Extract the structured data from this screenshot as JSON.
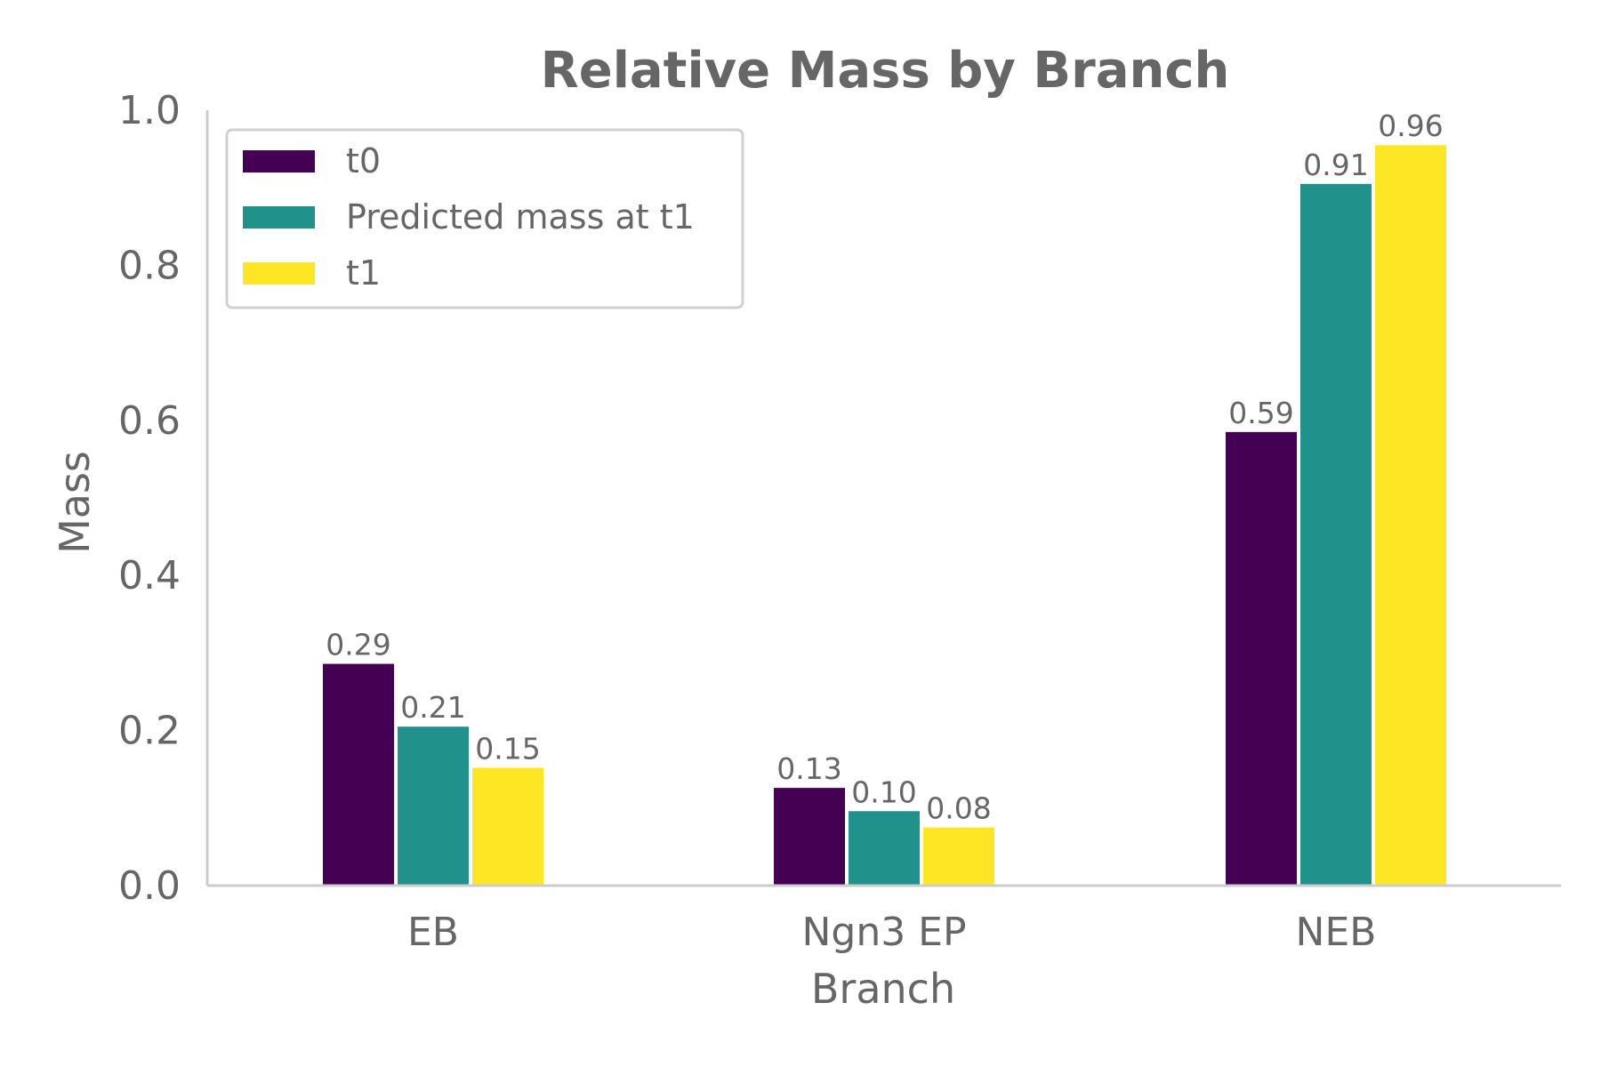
{
  "chart_data": {
    "type": "bar",
    "title": "Relative Mass by Branch",
    "xlabel": "Branch",
    "ylabel": "Mass",
    "categories": [
      "EB",
      "Ngn3 EP",
      "NEB"
    ],
    "series": [
      {
        "name": "t0",
        "color": "#440154",
        "values": [
          0.286,
          0.126,
          0.585
        ],
        "labels": [
          "0.29",
          "0.13",
          "0.59"
        ]
      },
      {
        "name": "Predicted mass at t1",
        "color": "#21918c",
        "values": [
          0.205,
          0.096,
          0.905
        ],
        "labels": [
          "0.21",
          "0.10",
          "0.91"
        ]
      },
      {
        "name": "t1",
        "color": "#fde725",
        "values": [
          0.152,
          0.075,
          0.955
        ],
        "labels": [
          "0.15",
          "0.08",
          "0.96"
        ]
      }
    ],
    "ylim": [
      0,
      1.0
    ],
    "yticks": [
      "0.0",
      "0.2",
      "0.4",
      "0.6",
      "0.8",
      "1.0"
    ],
    "grid": false,
    "legend_position": "top-left"
  }
}
